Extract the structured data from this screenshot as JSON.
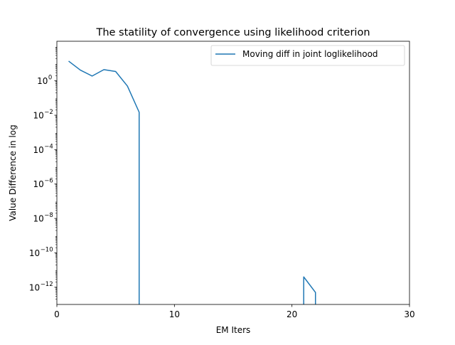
{
  "chart_data": {
    "type": "line",
    "title": "The statility of convergence using likelihood criterion",
    "xlabel": "EM Iters",
    "ylabel": "Value Difference in log",
    "xlim": [
      0,
      30
    ],
    "ylim": [
      1e-13,
      200
    ],
    "yscale": "log",
    "grid": false,
    "legend_position": "top-right",
    "x_ticks": [
      {
        "value": 0,
        "label": "0"
      },
      {
        "value": 10,
        "label": "10"
      },
      {
        "value": 20,
        "label": "20"
      },
      {
        "value": 30,
        "label": "30"
      }
    ],
    "y_ticks": [
      {
        "exp": 0,
        "base": "10",
        "label": "0"
      },
      {
        "exp": -2,
        "base": "10",
        "label": "−2"
      },
      {
        "exp": -4,
        "base": "10",
        "label": "−4"
      },
      {
        "exp": -6,
        "base": "10",
        "label": "−6"
      },
      {
        "exp": -8,
        "base": "10",
        "label": "−8"
      },
      {
        "exp": -10,
        "base": "10",
        "label": "−10"
      },
      {
        "exp": -12,
        "base": "10",
        "label": "−12"
      }
    ],
    "series": [
      {
        "name": "Moving diff in joint loglikelihood",
        "color": "#1f77b4",
        "segments": [
          {
            "x": [
              1,
              2,
              3,
              4,
              5,
              6,
              7
            ],
            "y": [
              14,
              4.2,
              1.9,
              4.5,
              3.5,
              0.5,
              0.015
            ],
            "drop_to_axis": true
          },
          {
            "x": [
              21,
              22
            ],
            "y": [
              4e-12,
              5e-13
            ],
            "rise_from_axis": true,
            "drop_to_axis": true
          }
        ]
      }
    ]
  }
}
